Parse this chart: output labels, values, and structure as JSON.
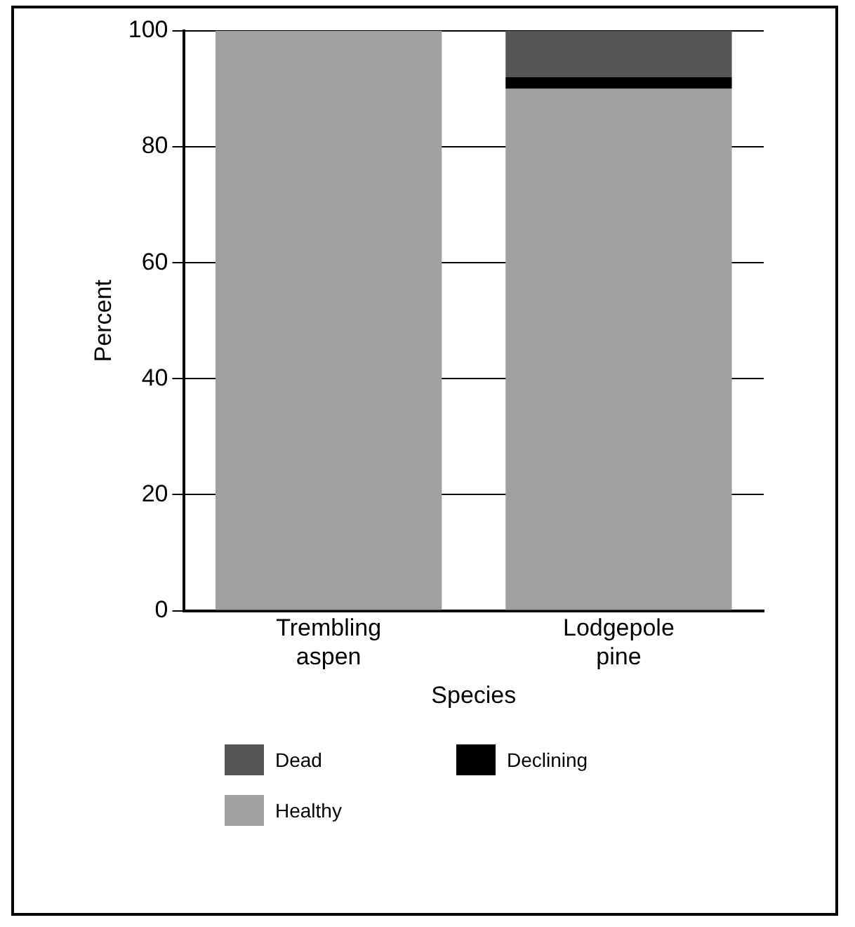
{
  "chart_data": {
    "type": "bar",
    "stacked": true,
    "xlabel": "Species",
    "ylabel": "Percent",
    "categories": [
      "Trembling aspen",
      "Lodgepole pine"
    ],
    "series": [
      {
        "name": "Healthy",
        "color": "#a0a0a0",
        "values": [
          100,
          90
        ]
      },
      {
        "name": "Declining",
        "color": "#000000",
        "values": [
          0,
          2
        ]
      },
      {
        "name": "Dead",
        "color": "#555555",
        "values": [
          0,
          8
        ]
      }
    ],
    "ylim": [
      0,
      100
    ],
    "yticks": [
      0,
      20,
      40,
      60,
      80,
      100
    ],
    "grid": "y",
    "legend": "bottom"
  }
}
